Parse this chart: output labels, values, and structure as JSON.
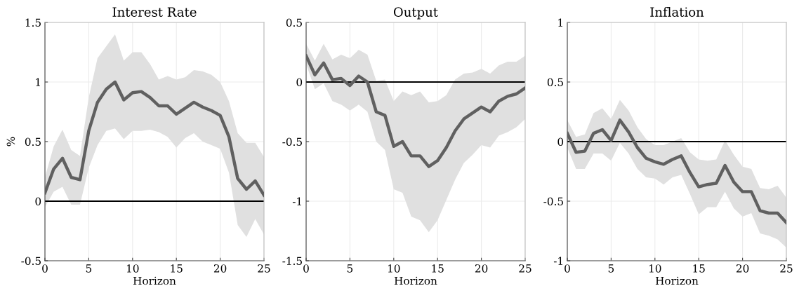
{
  "chart_data": [
    {
      "type": "line",
      "title": "Interest Rate",
      "xlabel": "Horizon",
      "ylabel": "%",
      "x": [
        0,
        1,
        2,
        3,
        4,
        5,
        6,
        7,
        8,
        9,
        10,
        11,
        12,
        13,
        14,
        15,
        16,
        17,
        18,
        19,
        20,
        21,
        22,
        23,
        24,
        25
      ],
      "series": [
        {
          "color": "#606060",
          "values": [
            0.07,
            0.27,
            0.36,
            0.2,
            0.18,
            0.59,
            0.83,
            0.94,
            1.0,
            0.85,
            0.91,
            0.92,
            0.87,
            0.8,
            0.8,
            0.73,
            0.78,
            0.83,
            0.79,
            0.76,
            0.72,
            0.54,
            0.19,
            0.1,
            0.17,
            0.05
          ],
          "upper": [
            0.2,
            0.46,
            0.6,
            0.43,
            0.38,
            0.87,
            1.2,
            1.3,
            1.4,
            1.18,
            1.25,
            1.25,
            1.15,
            1.02,
            1.05,
            1.02,
            1.04,
            1.1,
            1.09,
            1.06,
            1.0,
            0.84,
            0.57,
            0.49,
            0.49,
            0.37
          ],
          "lower": [
            -0.05,
            0.08,
            0.12,
            -0.03,
            -0.03,
            0.28,
            0.47,
            0.59,
            0.61,
            0.52,
            0.59,
            0.59,
            0.6,
            0.58,
            0.54,
            0.45,
            0.53,
            0.57,
            0.5,
            0.47,
            0.44,
            0.24,
            -0.2,
            -0.3,
            -0.15,
            -0.28
          ]
        }
      ],
      "xlim": [
        0,
        25
      ],
      "xticks": [
        0,
        5,
        10,
        15,
        20,
        25
      ],
      "ylim": [
        -0.5,
        1.5
      ],
      "yticks": [
        -0.5,
        0,
        0.5,
        1,
        1.5
      ],
      "ref_lines": [
        {
          "axis": "y",
          "value": 0,
          "color": "#000000"
        }
      ],
      "grid": true
    },
    {
      "type": "line",
      "title": "Output",
      "xlabel": "Horizon",
      "x": [
        0,
        1,
        2,
        3,
        4,
        5,
        6,
        7,
        8,
        9,
        10,
        11,
        12,
        13,
        14,
        15,
        16,
        17,
        18,
        19,
        20,
        21,
        22,
        23,
        24,
        25
      ],
      "series": [
        {
          "color": "#606060",
          "values": [
            0.22,
            0.06,
            0.16,
            0.02,
            0.03,
            -0.03,
            0.05,
            0,
            -0.25,
            -0.28,
            -0.54,
            -0.5,
            -0.62,
            -0.62,
            -0.71,
            -0.66,
            -0.55,
            -0.41,
            -0.31,
            -0.26,
            -0.21,
            -0.25,
            -0.16,
            -0.12,
            -0.1,
            -0.05
          ],
          "upper": [
            0.32,
            0.18,
            0.32,
            0.19,
            0.23,
            0.2,
            0.27,
            0.23,
            0.01,
            0.02,
            -0.16,
            -0.08,
            -0.11,
            -0.08,
            -0.17,
            -0.16,
            -0.11,
            0.02,
            0.07,
            0.08,
            0.11,
            0.07,
            0.14,
            0.17,
            0.17,
            0.22
          ],
          "lower": [
            0.15,
            -0.06,
            -0.01,
            -0.16,
            -0.19,
            -0.24,
            -0.19,
            -0.25,
            -0.5,
            -0.57,
            -0.9,
            -0.93,
            -1.13,
            -1.16,
            -1.26,
            -1.16,
            -0.99,
            -0.82,
            -0.68,
            -0.61,
            -0.53,
            -0.55,
            -0.45,
            -0.42,
            -0.38,
            -0.31
          ]
        }
      ],
      "xlim": [
        0,
        25
      ],
      "xticks": [
        0,
        5,
        10,
        15,
        20,
        25
      ],
      "ylim": [
        -1.5,
        0.5
      ],
      "yticks": [
        -1.5,
        -1,
        -0.5,
        0,
        0.5
      ],
      "ref_lines": [
        {
          "axis": "y",
          "value": 0,
          "color": "#000000"
        }
      ],
      "grid": true
    },
    {
      "type": "line",
      "title": "Inflation",
      "xlabel": "Horizon",
      "x": [
        0,
        1,
        2,
        3,
        4,
        5,
        6,
        7,
        8,
        9,
        10,
        11,
        12,
        13,
        14,
        15,
        16,
        17,
        18,
        19,
        20,
        21,
        22,
        23,
        24,
        25
      ],
      "series": [
        {
          "color": "#606060",
          "values": [
            0.07,
            -0.09,
            -0.08,
            0.07,
            0.1,
            0.01,
            0.18,
            0.08,
            -0.05,
            -0.14,
            -0.17,
            -0.19,
            -0.15,
            -0.12,
            -0.26,
            -0.38,
            -0.36,
            -0.35,
            -0.2,
            -0.34,
            -0.42,
            -0.42,
            -0.58,
            -0.6,
            -0.6,
            -0.68
          ],
          "upper": [
            0.18,
            0.04,
            0.06,
            0.24,
            0.28,
            0.19,
            0.35,
            0.26,
            0.12,
            0.02,
            -0.03,
            -0.03,
            0,
            0.03,
            -0.09,
            -0.15,
            -0.16,
            -0.15,
            0.01,
            -0.11,
            -0.21,
            -0.23,
            -0.39,
            -0.4,
            -0.37,
            -0.47
          ],
          "lower": [
            -0.05,
            -0.23,
            -0.23,
            -0.1,
            -0.1,
            -0.16,
            -0.01,
            -0.1,
            -0.23,
            -0.3,
            -0.31,
            -0.36,
            -0.3,
            -0.28,
            -0.44,
            -0.61,
            -0.55,
            -0.55,
            -0.42,
            -0.56,
            -0.63,
            -0.6,
            -0.77,
            -0.79,
            -0.82,
            -0.89
          ]
        }
      ],
      "xlim": [
        0,
        25
      ],
      "xticks": [
        0,
        5,
        10,
        15,
        20,
        25
      ],
      "ylim": [
        -1,
        1
      ],
      "yticks": [
        -1,
        -0.5,
        0,
        0.5,
        1
      ],
      "ref_lines": [
        {
          "axis": "y",
          "value": 0,
          "color": "#000000"
        }
      ],
      "grid": true
    }
  ]
}
